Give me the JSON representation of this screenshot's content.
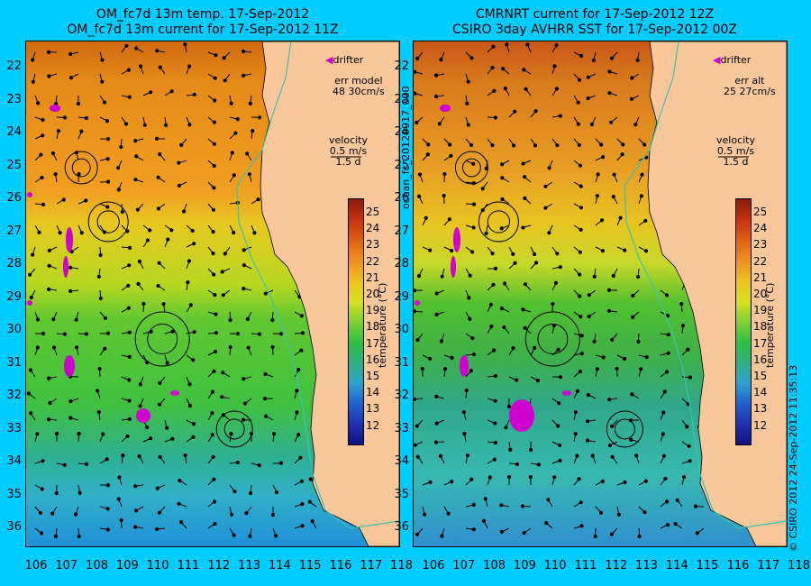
{
  "left": {
    "title_line1": "OM_fc7d 13m temp. 17-Sep-2012",
    "title_line2": "OM_fc7d 13m current for 17-Sep-2012 11Z",
    "drifter_label": "drifter",
    "err_label": "err model",
    "err_value": "48 30cm/s",
    "velocity_label": "velocity",
    "velocity_speed": "0.5 m/s",
    "velocity_time": "1.5 d",
    "colorbar_title": "temperature (°C)"
  },
  "right": {
    "title_line1": "CMRNRT current for 17-Sep-2012 12Z",
    "title_line2": "CSIRO 3day AVHRR SST for 17-Sep-2012 00Z",
    "drifter_label": "drifter",
    "err_label": "err alt",
    "err_value": "25 27cm/s",
    "velocity_label": "velocity",
    "velocity_speed": "0.5 m/s",
    "velocity_time": "1.5 d",
    "colorbar_title": "temperature (°C)"
  },
  "side_label_left": "ocean_fc_20120917_000",
  "side_label_right": "© CSIRO 2012   24-Sep-2012 11:35:13",
  "latitudes": [
    "22",
    "23",
    "24",
    "25",
    "26",
    "27",
    "28",
    "29",
    "30",
    "31",
    "32",
    "33",
    "34",
    "35",
    "36"
  ],
  "longitudes": [
    "106",
    "107",
    "108",
    "109",
    "110",
    "111",
    "112",
    "113",
    "114",
    "115",
    "116",
    "117",
    "118"
  ],
  "colorbar_ticks": [
    "25",
    "24",
    "23",
    "22",
    "21",
    "20",
    "19",
    "18",
    "17",
    "16",
    "15",
    "14",
    "13",
    "12"
  ],
  "colors": {
    "background": "#00ccff",
    "land": "#f9c79a",
    "drifter": "#d000d0",
    "shelf_line": "#40c0b0"
  }
}
